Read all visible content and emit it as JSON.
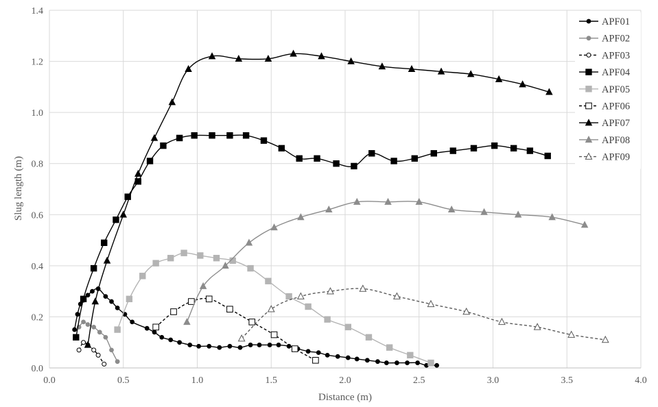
{
  "chart_data": {
    "type": "line",
    "title": "",
    "xlabel": "Distance (m)",
    "ylabel": "Slug length (m)",
    "xlim": [
      0.0,
      4.0
    ],
    "ylim": [
      0.0,
      1.4
    ],
    "xticks": [
      "0.0",
      "0.5",
      "1.0",
      "1.5",
      "2.0",
      "2.5",
      "3.0",
      "3.5",
      "4.0"
    ],
    "yticks": [
      "0.0",
      "0.2",
      "0.4",
      "0.6",
      "0.8",
      "1.0",
      "1.2",
      "1.4"
    ],
    "grid": true,
    "legend_position": "top-right",
    "series": [
      {
        "name": "APF01",
        "color": "#000000",
        "marker": "circle",
        "fill": "filled",
        "dash": "solid",
        "points": [
          [
            0.17,
            0.15
          ],
          [
            0.19,
            0.21
          ],
          [
            0.21,
            0.25
          ],
          [
            0.23,
            0.265
          ],
          [
            0.26,
            0.285
          ],
          [
            0.29,
            0.3
          ],
          [
            0.33,
            0.31
          ],
          [
            0.38,
            0.28
          ],
          [
            0.42,
            0.26
          ],
          [
            0.46,
            0.235
          ],
          [
            0.51,
            0.21
          ],
          [
            0.56,
            0.18
          ],
          [
            0.66,
            0.155
          ],
          [
            0.71,
            0.14
          ],
          [
            0.76,
            0.12
          ],
          [
            0.82,
            0.11
          ],
          [
            0.88,
            0.1
          ],
          [
            0.95,
            0.09
          ],
          [
            1.01,
            0.085
          ],
          [
            1.08,
            0.085
          ],
          [
            1.15,
            0.08
          ],
          [
            1.22,
            0.085
          ],
          [
            1.29,
            0.08
          ],
          [
            1.36,
            0.09
          ],
          [
            1.42,
            0.09
          ],
          [
            1.49,
            0.09
          ],
          [
            1.55,
            0.09
          ],
          [
            1.62,
            0.085
          ],
          [
            1.68,
            0.075
          ],
          [
            1.75,
            0.065
          ],
          [
            1.82,
            0.06
          ],
          [
            1.88,
            0.05
          ],
          [
            1.95,
            0.045
          ],
          [
            2.02,
            0.04
          ],
          [
            2.08,
            0.035
          ],
          [
            2.15,
            0.03
          ],
          [
            2.22,
            0.025
          ],
          [
            2.28,
            0.02
          ],
          [
            2.35,
            0.02
          ],
          [
            2.42,
            0.02
          ],
          [
            2.49,
            0.02
          ],
          [
            2.55,
            0.01
          ],
          [
            2.62,
            0.01
          ]
        ]
      },
      {
        "name": "APF02",
        "color": "#8c8c8c",
        "marker": "circle",
        "fill": "filled",
        "dash": "solid",
        "points": [
          [
            0.2,
            0.16
          ],
          [
            0.23,
            0.18
          ],
          [
            0.26,
            0.17
          ],
          [
            0.3,
            0.16
          ],
          [
            0.34,
            0.14
          ],
          [
            0.38,
            0.12
          ],
          [
            0.42,
            0.07
          ],
          [
            0.46,
            0.025
          ]
        ]
      },
      {
        "name": "APF03",
        "color": "#000000",
        "marker": "circle",
        "fill": "open",
        "dash": "dashed",
        "points": [
          [
            0.2,
            0.07
          ],
          [
            0.23,
            0.1
          ],
          [
            0.26,
            0.09
          ],
          [
            0.3,
            0.07
          ],
          [
            0.33,
            0.05
          ],
          [
            0.37,
            0.015
          ]
        ]
      },
      {
        "name": "APF04",
        "color": "#000000",
        "marker": "square",
        "fill": "filled",
        "dash": "solid",
        "points": [
          [
            0.18,
            0.12
          ],
          [
            0.23,
            0.27
          ],
          [
            0.3,
            0.39
          ],
          [
            0.37,
            0.49
          ],
          [
            0.45,
            0.58
          ],
          [
            0.53,
            0.67
          ],
          [
            0.6,
            0.73
          ],
          [
            0.68,
            0.81
          ],
          [
            0.77,
            0.87
          ],
          [
            0.88,
            0.9
          ],
          [
            0.98,
            0.91
          ],
          [
            1.1,
            0.91
          ],
          [
            1.22,
            0.91
          ],
          [
            1.33,
            0.91
          ],
          [
            1.45,
            0.89
          ],
          [
            1.57,
            0.86
          ],
          [
            1.69,
            0.82
          ],
          [
            1.81,
            0.82
          ],
          [
            1.94,
            0.8
          ],
          [
            2.06,
            0.79
          ],
          [
            2.18,
            0.84
          ],
          [
            2.33,
            0.81
          ],
          [
            2.47,
            0.82
          ],
          [
            2.6,
            0.84
          ],
          [
            2.73,
            0.85
          ],
          [
            2.87,
            0.86
          ],
          [
            3.01,
            0.87
          ],
          [
            3.14,
            0.86
          ],
          [
            3.25,
            0.85
          ],
          [
            3.37,
            0.83
          ]
        ]
      },
      {
        "name": "APF05",
        "color": "#b4b4b4",
        "marker": "square",
        "fill": "filled",
        "dash": "solid",
        "points": [
          [
            0.46,
            0.15
          ],
          [
            0.54,
            0.27
          ],
          [
            0.63,
            0.36
          ],
          [
            0.72,
            0.41
          ],
          [
            0.82,
            0.43
          ],
          [
            0.91,
            0.45
          ],
          [
            1.02,
            0.44
          ],
          [
            1.13,
            0.43
          ],
          [
            1.24,
            0.42
          ],
          [
            1.36,
            0.39
          ],
          [
            1.48,
            0.34
          ],
          [
            1.62,
            0.28
          ],
          [
            1.75,
            0.24
          ],
          [
            1.88,
            0.19
          ],
          [
            2.02,
            0.16
          ],
          [
            2.16,
            0.12
          ],
          [
            2.3,
            0.08
          ],
          [
            2.44,
            0.05
          ],
          [
            2.58,
            0.02
          ]
        ]
      },
      {
        "name": "APF06",
        "color": "#000000",
        "marker": "square",
        "fill": "open",
        "dash": "dashed",
        "points": [
          [
            0.72,
            0.16
          ],
          [
            0.84,
            0.22
          ],
          [
            0.96,
            0.26
          ],
          [
            1.08,
            0.27
          ],
          [
            1.22,
            0.23
          ],
          [
            1.37,
            0.18
          ],
          [
            1.52,
            0.13
          ],
          [
            1.66,
            0.075
          ],
          [
            1.8,
            0.03
          ]
        ]
      },
      {
        "name": "APF07",
        "color": "#000000",
        "marker": "triangle",
        "fill": "filled",
        "dash": "solid",
        "points": [
          [
            0.26,
            0.09
          ],
          [
            0.31,
            0.26
          ],
          [
            0.39,
            0.42
          ],
          [
            0.5,
            0.6
          ],
          [
            0.6,
            0.76
          ],
          [
            0.71,
            0.9
          ],
          [
            0.83,
            1.04
          ],
          [
            0.94,
            1.17
          ],
          [
            1.1,
            1.22
          ],
          [
            1.28,
            1.21
          ],
          [
            1.48,
            1.21
          ],
          [
            1.65,
            1.23
          ],
          [
            1.84,
            1.22
          ],
          [
            2.04,
            1.2
          ],
          [
            2.25,
            1.18
          ],
          [
            2.45,
            1.17
          ],
          [
            2.65,
            1.16
          ],
          [
            2.85,
            1.15
          ],
          [
            3.04,
            1.13
          ],
          [
            3.2,
            1.11
          ],
          [
            3.38,
            1.08
          ]
        ]
      },
      {
        "name": "APF08",
        "color": "#8c8c8c",
        "marker": "triangle",
        "fill": "filled",
        "dash": "solid",
        "points": [
          [
            0.93,
            0.18
          ],
          [
            1.04,
            0.32
          ],
          [
            1.19,
            0.4
          ],
          [
            1.35,
            0.49
          ],
          [
            1.52,
            0.55
          ],
          [
            1.7,
            0.59
          ],
          [
            1.89,
            0.62
          ],
          [
            2.08,
            0.65
          ],
          [
            2.29,
            0.65
          ],
          [
            2.5,
            0.65
          ],
          [
            2.72,
            0.62
          ],
          [
            2.94,
            0.61
          ],
          [
            3.17,
            0.6
          ],
          [
            3.4,
            0.59
          ],
          [
            3.62,
            0.56
          ]
        ]
      },
      {
        "name": "APF09",
        "color": "#595959",
        "marker": "triangle",
        "fill": "open",
        "dash": "dashed",
        "points": [
          [
            1.3,
            0.115
          ],
          [
            1.5,
            0.23
          ],
          [
            1.7,
            0.28
          ],
          [
            1.9,
            0.3
          ],
          [
            2.12,
            0.31
          ],
          [
            2.35,
            0.28
          ],
          [
            2.58,
            0.25
          ],
          [
            2.82,
            0.22
          ],
          [
            3.06,
            0.18
          ],
          [
            3.3,
            0.16
          ],
          [
            3.53,
            0.13
          ],
          [
            3.76,
            0.11
          ]
        ]
      }
    ]
  }
}
